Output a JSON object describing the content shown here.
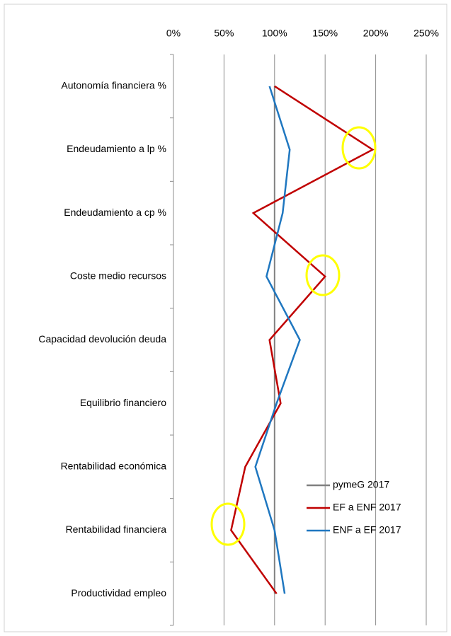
{
  "chart_data": {
    "type": "line",
    "orientation": "horizontal",
    "categories": [
      "Autonomía financiera %",
      "Endeudamiento a lp %",
      "Endeudamiento a cp %",
      "Coste medio recursos",
      "Capacidad devolución deuda",
      "Equilibrio financiero",
      "Rentabilidad económica",
      "Rentabilidad financiera",
      "Productividad empleo"
    ],
    "series": [
      {
        "name": "pymeG 2017",
        "color": "#808080",
        "values": [
          100,
          100,
          100,
          100,
          100,
          100,
          100,
          100,
          100
        ]
      },
      {
        "name": "EF a ENF 2017",
        "color": "#c00000",
        "values": [
          100,
          197,
          79,
          150,
          95,
          106,
          71,
          57,
          102
        ]
      },
      {
        "name": "ENF a EF 2017",
        "color": "#1f77c0",
        "values": [
          95,
          115,
          108,
          92,
          125,
          102,
          81,
          100,
          110
        ]
      }
    ],
    "xlim": [
      0,
      250
    ],
    "xticks": [
      {
        "value": 0,
        "label": "0%"
      },
      {
        "value": 50,
        "label": "50%"
      },
      {
        "value": 100,
        "label": "100%"
      },
      {
        "value": 150,
        "label": "150%"
      },
      {
        "value": 200,
        "label": "200%"
      },
      {
        "value": 250,
        "label": "250%"
      }
    ],
    "grid": true,
    "legend": "lower right"
  }
}
